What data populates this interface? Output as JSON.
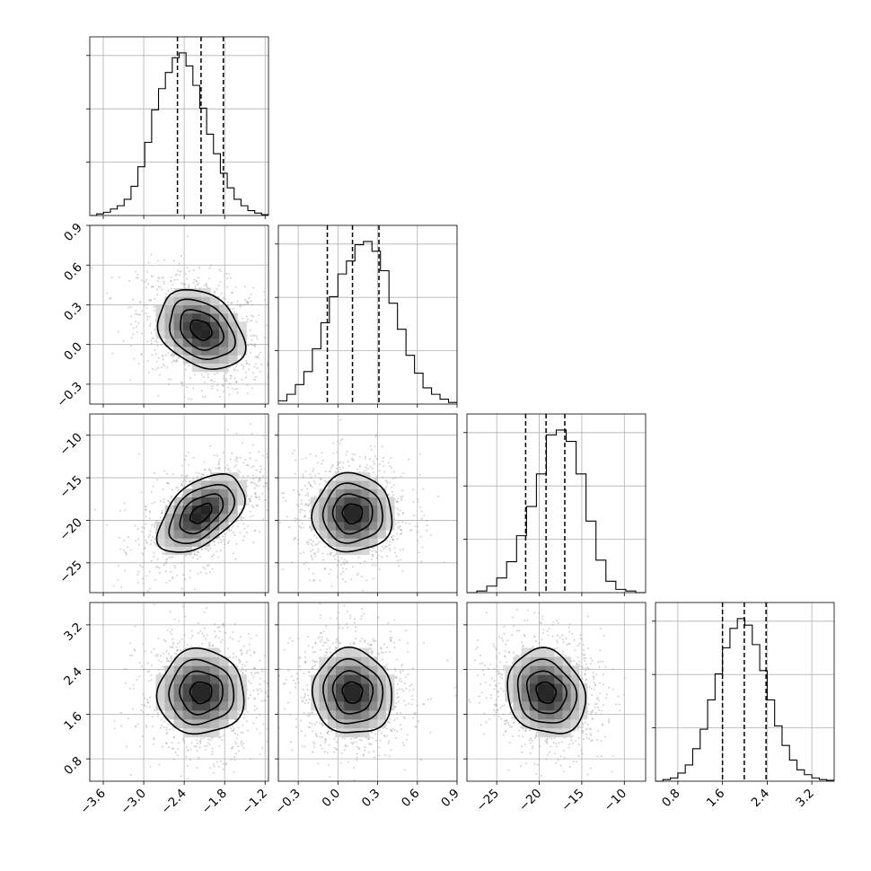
{
  "chart_data": {
    "type": "corner",
    "title": "",
    "grid": true,
    "parameters": [
      {
        "index": 0,
        "label": "",
        "range": [
          -3.8,
          -1.15
        ],
        "ticks": [
          -3.6,
          -3.0,
          -2.4,
          -1.8,
          -1.2
        ],
        "tick_labels": [
          "−3.6",
          "−3.0",
          "−2.4",
          "−1.8",
          "−1.2"
        ],
        "quantiles": [
          -2.5,
          -2.15,
          -1.82
        ],
        "histogram": [
          0,
          0.01,
          0.02,
          0.04,
          0.06,
          0.1,
          0.18,
          0.3,
          0.45,
          0.65,
          0.78,
          0.88,
          0.97,
          1.0,
          0.92,
          0.8,
          0.66,
          0.5,
          0.38,
          0.26,
          0.17,
          0.1,
          0.06,
          0.03,
          0.015,
          0.005
        ]
      },
      {
        "index": 1,
        "label": "",
        "range": [
          -0.45,
          0.9
        ],
        "ticks": [
          -0.3,
          0.0,
          0.3,
          0.6,
          0.9
        ],
        "tick_labels": [
          "−0.3",
          "0.0",
          "0.3",
          "0.6",
          "0.9"
        ],
        "quantiles": [
          -0.08,
          0.11,
          0.31
        ],
        "histogram": [
          0.02,
          0.06,
          0.12,
          0.2,
          0.34,
          0.5,
          0.66,
          0.8,
          0.88,
          0.98,
          1.0,
          0.94,
          0.82,
          0.62,
          0.46,
          0.3,
          0.19,
          0.1,
          0.06,
          0.03,
          0.01
        ]
      },
      {
        "index": 2,
        "label": "",
        "range": [
          -28.5,
          -7.5
        ],
        "ticks": [
          -25,
          -20,
          -15,
          -10
        ],
        "tick_labels": [
          "−25",
          "−20",
          "−15",
          "−10"
        ],
        "quantiles": [
          -21.6,
          -19.2,
          -17.0
        ],
        "histogram": [
          0.0,
          0.01,
          0.04,
          0.09,
          0.19,
          0.35,
          0.53,
          0.73,
          0.97,
          1.0,
          0.93,
          0.73,
          0.44,
          0.2,
          0.07,
          0.02,
          0.01,
          0.0
        ]
      },
      {
        "index": 3,
        "label": "",
        "range": [
          0.4,
          3.6
        ],
        "ticks": [
          0.8,
          1.6,
          2.4,
          3.2
        ],
        "tick_labels": [
          "0.8",
          "1.6",
          "2.4",
          "3.2"
        ],
        "quantiles": [
          1.6,
          1.99,
          2.38
        ],
        "histogram": [
          0.0,
          0.01,
          0.02,
          0.05,
          0.1,
          0.2,
          0.32,
          0.5,
          0.66,
          0.82,
          0.94,
          1.0,
          0.96,
          0.84,
          0.68,
          0.5,
          0.34,
          0.22,
          0.13,
          0.07,
          0.04,
          0.02,
          0.01,
          0.005
        ]
      }
    ],
    "pairs": [
      {
        "x": 0,
        "y": 1,
        "center": [
          -2.15,
          0.11
        ],
        "sigma": [
          0.32,
          0.15
        ],
        "rho": -0.3
      },
      {
        "x": 0,
        "y": 2,
        "center": [
          -2.15,
          -19.2
        ],
        "sigma": [
          0.32,
          2.3
        ],
        "rho": 0.5
      },
      {
        "x": 1,
        "y": 2,
        "center": [
          0.11,
          -19.2
        ],
        "sigma": [
          0.15,
          2.3
        ],
        "rho": 0.0
      },
      {
        "x": 0,
        "y": 3,
        "center": [
          -2.15,
          1.99
        ],
        "sigma": [
          0.32,
          0.38
        ],
        "rho": 0.0
      },
      {
        "x": 1,
        "y": 3,
        "center": [
          0.11,
          1.99
        ],
        "sigma": [
          0.15,
          0.38
        ],
        "rho": -0.05
      },
      {
        "x": 2,
        "y": 3,
        "center": [
          -19.2,
          1.99
        ],
        "sigma": [
          2.3,
          0.38
        ],
        "rho": -0.15
      }
    ],
    "contour_levels_sigma": [
      0.5,
      1.0,
      1.5,
      2.0
    ]
  }
}
